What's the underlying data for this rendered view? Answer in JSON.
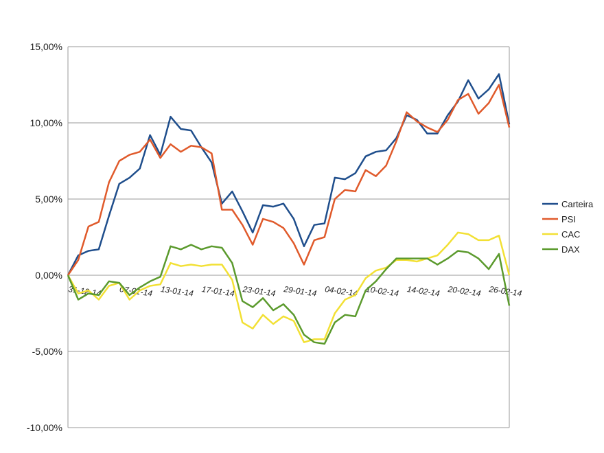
{
  "chart_data": {
    "type": "line",
    "title": "",
    "xlabel": "",
    "ylabel": "",
    "ylim": [
      -0.1,
      0.15
    ],
    "y_ticks": [
      0.15,
      0.1,
      0.05,
      0.0,
      -0.05,
      -0.1
    ],
    "y_tick_labels": [
      "15,00%",
      "10,00%",
      "5,00%",
      "0,00%",
      "-5,00%",
      "-10,00%"
    ],
    "grid": "horizontal",
    "legend_position": "right",
    "x_tick_labels": [
      {
        "label": "31-12-14",
        "index": 0
      },
      {
        "label": "07-01-14",
        "index": 5
      },
      {
        "label": "13-01-14",
        "index": 9
      },
      {
        "label": "17-01-14",
        "index": 13
      },
      {
        "label": "23-01-14",
        "index": 17
      },
      {
        "label": "29-01-14",
        "index": 21
      },
      {
        "label": "04-02-14",
        "index": 25
      },
      {
        "label": "10-02-14",
        "index": 29
      },
      {
        "label": "14-02-14",
        "index": 33
      },
      {
        "label": "20-02-14",
        "index": 37
      },
      {
        "label": "26-02-14",
        "index": 41
      }
    ],
    "series": [
      {
        "name": "Carteira",
        "color": "#1f4e8c",
        "values": [
          0.0,
          0.013,
          0.016,
          0.017,
          0.039,
          0.06,
          0.064,
          0.07,
          0.092,
          0.079,
          0.104,
          0.096,
          0.095,
          0.084,
          0.074,
          0.047,
          0.055,
          0.042,
          0.028,
          0.046,
          0.045,
          0.047,
          0.037,
          0.019,
          0.033,
          0.034,
          0.064,
          0.063,
          0.067,
          0.078,
          0.081,
          0.082,
          0.09,
          0.105,
          0.102,
          0.093,
          0.093,
          0.105,
          0.114,
          0.128,
          0.116,
          0.122,
          0.132,
          0.099
        ]
      },
      {
        "name": "PSI",
        "color": "#e05a2b",
        "values": [
          0.0,
          0.01,
          0.032,
          0.035,
          0.061,
          0.075,
          0.079,
          0.081,
          0.089,
          0.077,
          0.086,
          0.081,
          0.085,
          0.084,
          0.08,
          0.043,
          0.043,
          0.033,
          0.02,
          0.037,
          0.035,
          0.031,
          0.021,
          0.007,
          0.023,
          0.025,
          0.05,
          0.056,
          0.055,
          0.069,
          0.065,
          0.072,
          0.088,
          0.107,
          0.101,
          0.097,
          0.094,
          0.102,
          0.115,
          0.119,
          0.106,
          0.113,
          0.125,
          0.097
        ]
      },
      {
        "name": "CAC",
        "color": "#f2e034",
        "values": [
          0.0,
          -0.012,
          -0.01,
          -0.016,
          -0.007,
          -0.005,
          -0.016,
          -0.01,
          -0.007,
          -0.006,
          0.008,
          0.006,
          0.007,
          0.006,
          0.007,
          0.007,
          -0.003,
          -0.031,
          -0.035,
          -0.026,
          -0.032,
          -0.027,
          -0.03,
          -0.044,
          -0.042,
          -0.042,
          -0.025,
          -0.016,
          -0.013,
          -0.002,
          0.003,
          0.005,
          0.01,
          0.01,
          0.009,
          0.011,
          0.013,
          0.02,
          0.028,
          0.027,
          0.023,
          0.023,
          0.026,
          0.0
        ]
      },
      {
        "name": "DAX",
        "color": "#5b9a2d",
        "values": [
          0.0,
          -0.016,
          -0.012,
          -0.013,
          -0.004,
          -0.005,
          -0.013,
          -0.008,
          -0.004,
          -0.001,
          0.019,
          0.017,
          0.02,
          0.017,
          0.019,
          0.018,
          0.008,
          -0.017,
          -0.021,
          -0.015,
          -0.023,
          -0.019,
          -0.026,
          -0.039,
          -0.044,
          -0.045,
          -0.031,
          -0.026,
          -0.027,
          -0.01,
          -0.004,
          0.004,
          0.011,
          0.011,
          0.011,
          0.011,
          0.007,
          0.011,
          0.016,
          0.015,
          0.011,
          0.004,
          0.014,
          -0.02
        ]
      }
    ]
  }
}
